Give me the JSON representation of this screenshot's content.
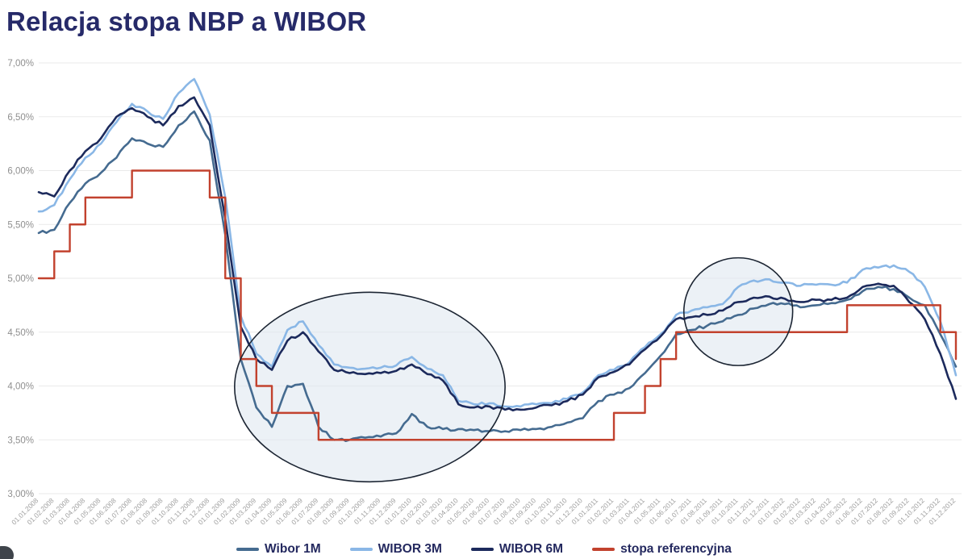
{
  "header": {
    "title": "Relacja stopa NBP a WIBOR"
  },
  "colors": {
    "title": "#262a69",
    "y_axis_label": "#8f8f8f",
    "x_axis_label": "#a0a0a0",
    "gridline": "#eaeaea",
    "legend_text": "#24295f",
    "annotation_fill": "#dde5ee",
    "annotation_stroke": "#1c2533"
  },
  "chart_data": {
    "type": "line",
    "title": "Relacja stopa NBP a WIBOR",
    "grid": "horizontal",
    "legend_position": "bottom",
    "y_axis": {
      "min": 3.0,
      "max": 7.0,
      "step": 0.5,
      "tick_labels": [
        "7,00%",
        "6,50%",
        "6,00%",
        "5,50%",
        "5,00%",
        "4,50%",
        "4,00%",
        "3,50%",
        "3,00%"
      ]
    },
    "x_axis": {
      "tick_labels": [
        "01.01.2008",
        "01.02.2008",
        "01.03.2008",
        "01.04.2008",
        "01.05.2008",
        "01.06.2008",
        "01.07.2008",
        "01.08.2008",
        "01.09.2008",
        "01.10.2008",
        "01.11.2008",
        "01.12.2008",
        "01.01.2009",
        "01.02.2009",
        "01.03.2009",
        "01.04.2009",
        "01.05.2009",
        "01.06.2009",
        "01.07.2009",
        "01.08.2009",
        "01.09.2009",
        "01.10.2009",
        "01.11.2009",
        "01.12.2009",
        "01.01.2010",
        "01.02.2010",
        "01.03.2010",
        "01.04.2010",
        "01.05.2010",
        "01.06.2010",
        "01.07.2010",
        "01.08.2010",
        "01.09.2010",
        "01.10.2010",
        "01.11.2010",
        "01.12.2010",
        "01.01.2011",
        "01.02.2011",
        "01.03.2011",
        "01.04.2011",
        "01.05.2011",
        "01.06.2011",
        "01.07.2011",
        "01.08.2011",
        "01.09.2011",
        "01.10.2011",
        "01.11.2011",
        "01.12.2011",
        "01.01.2012",
        "01.02.2012",
        "01.03.2012",
        "01.04.2012",
        "01.05.2012",
        "01.06.2012",
        "01.07.2012",
        "01.08.2012",
        "01.09.2012",
        "01.10.2012",
        "01.11.2012",
        "01.12.2012"
      ]
    },
    "series": [
      {
        "name": "Wibor 1M",
        "color": "#456b90",
        "style": "line",
        "values": [
          5.42,
          5.45,
          5.7,
          5.88,
          5.98,
          6.12,
          6.3,
          6.25,
          6.22,
          6.42,
          6.55,
          6.28,
          5.4,
          4.25,
          3.8,
          3.62,
          4.0,
          4.02,
          3.62,
          3.5,
          3.5,
          3.52,
          3.53,
          3.56,
          3.74,
          3.62,
          3.6,
          3.6,
          3.59,
          3.58,
          3.58,
          3.59,
          3.6,
          3.62,
          3.66,
          3.7,
          3.86,
          3.92,
          3.98,
          4.12,
          4.28,
          4.48,
          4.52,
          4.56,
          4.6,
          4.66,
          4.72,
          4.76,
          4.76,
          4.73,
          4.75,
          4.77,
          4.8,
          4.88,
          4.92,
          4.9,
          4.82,
          4.75,
          4.48,
          4.18
        ]
      },
      {
        "name": "WIBOR 3M",
        "color": "#8ab7e6",
        "style": "line",
        "values": [
          5.62,
          5.68,
          5.92,
          6.12,
          6.25,
          6.45,
          6.62,
          6.55,
          6.48,
          6.72,
          6.85,
          6.52,
          5.75,
          4.65,
          4.3,
          4.18,
          4.52,
          4.6,
          4.38,
          4.2,
          4.17,
          4.16,
          4.17,
          4.19,
          4.27,
          4.16,
          4.1,
          3.86,
          3.83,
          3.84,
          3.81,
          3.81,
          3.83,
          3.84,
          3.88,
          3.94,
          4.1,
          4.15,
          4.22,
          4.36,
          4.48,
          4.66,
          4.7,
          4.73,
          4.76,
          4.92,
          4.98,
          4.99,
          4.96,
          4.93,
          4.94,
          4.94,
          4.96,
          5.08,
          5.1,
          5.12,
          5.06,
          4.92,
          4.6,
          4.1
        ]
      },
      {
        "name": "WIBOR 6M",
        "color": "#1c2a5c",
        "style": "line",
        "values": [
          5.8,
          5.76,
          6.0,
          6.18,
          6.3,
          6.5,
          6.58,
          6.5,
          6.42,
          6.6,
          6.68,
          6.42,
          5.55,
          4.55,
          4.25,
          4.15,
          4.42,
          4.5,
          4.32,
          4.15,
          4.12,
          4.11,
          4.12,
          4.14,
          4.2,
          4.11,
          4.05,
          3.83,
          3.8,
          3.81,
          3.78,
          3.78,
          3.8,
          3.82,
          3.86,
          3.92,
          4.08,
          4.13,
          4.2,
          4.34,
          4.46,
          4.62,
          4.64,
          4.66,
          4.7,
          4.78,
          4.82,
          4.83,
          4.81,
          4.78,
          4.8,
          4.8,
          4.82,
          4.92,
          4.95,
          4.93,
          4.78,
          4.62,
          4.3,
          3.88
        ]
      },
      {
        "name": "stopa referencyjna",
        "color": "#c2422e",
        "style": "step",
        "values": [
          5.0,
          5.25,
          5.5,
          5.75,
          5.75,
          5.75,
          6.0,
          6.0,
          6.0,
          6.0,
          6.0,
          5.75,
          5.0,
          4.25,
          4.0,
          3.75,
          3.75,
          3.75,
          3.5,
          3.5,
          3.5,
          3.5,
          3.5,
          3.5,
          3.5,
          3.5,
          3.5,
          3.5,
          3.5,
          3.5,
          3.5,
          3.5,
          3.5,
          3.5,
          3.5,
          3.5,
          3.5,
          3.75,
          3.75,
          4.0,
          4.25,
          4.5,
          4.5,
          4.5,
          4.5,
          4.5,
          4.5,
          4.5,
          4.5,
          4.5,
          4.5,
          4.5,
          4.75,
          4.75,
          4.75,
          4.75,
          4.75,
          4.75,
          4.5,
          4.25
        ]
      }
    ],
    "annotations": [
      {
        "type": "ellipse",
        "note": "highlight 2009-2010 gap between WIBOR and NBP rate",
        "x_center_index": 21.3,
        "y_center_value": 3.99,
        "x_radius_months": 8.7,
        "y_radius_value": 0.88
      },
      {
        "type": "ellipse",
        "note": "highlight late-2011 WIBOR jump above reference rate",
        "x_center_index": 45.0,
        "y_center_value": 4.69,
        "x_radius_months": 3.5,
        "y_radius_value": 0.5
      }
    ]
  }
}
